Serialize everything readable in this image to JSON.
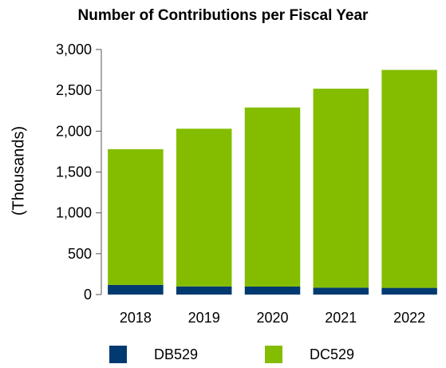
{
  "chart_data": {
    "type": "bar",
    "stacked": true,
    "title": "Number of Contributions per Fiscal Year",
    "ylabel": "(Thousands)",
    "xlabel": "",
    "categories": [
      "2018",
      "2019",
      "2020",
      "2021",
      "2022"
    ],
    "series": [
      {
        "name": "DB529",
        "color": "#003A70",
        "values": [
          118,
          100,
          98,
          85,
          82
        ]
      },
      {
        "name": "DC529",
        "color": "#84BD00",
        "values": [
          1662,
          1930,
          2192,
          2435,
          2668
        ]
      }
    ],
    "ylim": [
      0,
      3000
    ],
    "yticks": [
      "0",
      "500",
      "1,000",
      "1,500",
      "2,000",
      "2,500",
      "3,000"
    ],
    "ytick_values": [
      0,
      500,
      1000,
      1500,
      2000,
      2500,
      3000
    ],
    "grid": false,
    "legend_position": "bottom"
  }
}
